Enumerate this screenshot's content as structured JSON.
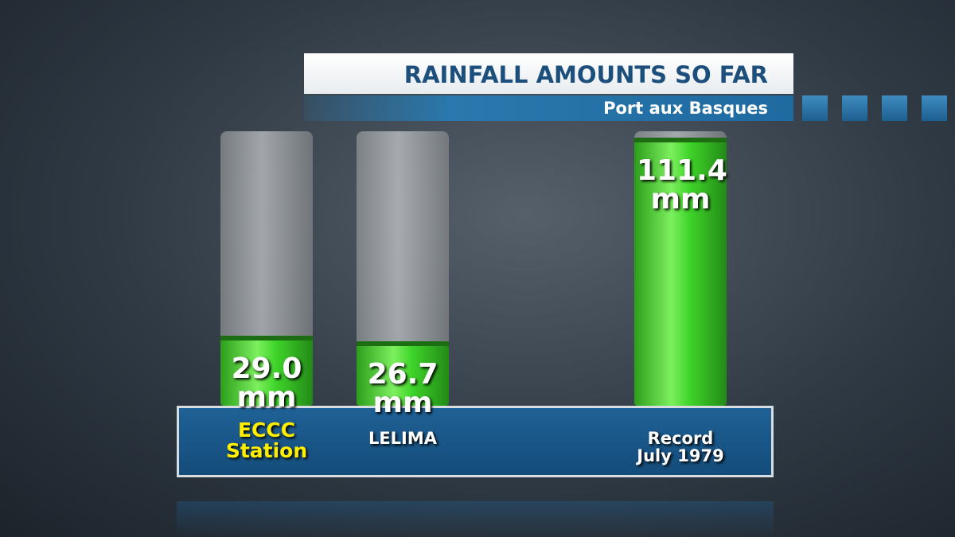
{
  "chart_data": {
    "type": "bar",
    "title": "RAINFALL AMOUNTS SO FAR",
    "subtitle": "Port aux Basques",
    "categories": [
      "ECCC Station",
      "LELIMA",
      "Record July 1979"
    ],
    "values": [
      29.0,
      26.7,
      111.4
    ],
    "value_labels": [
      "29.0 mm",
      "26.7 mm",
      "111.4 mm"
    ],
    "color": "#3fd42a",
    "category_colors": [
      "#ffee00",
      "#ffffff",
      "#ffffff"
    ]
  }
}
